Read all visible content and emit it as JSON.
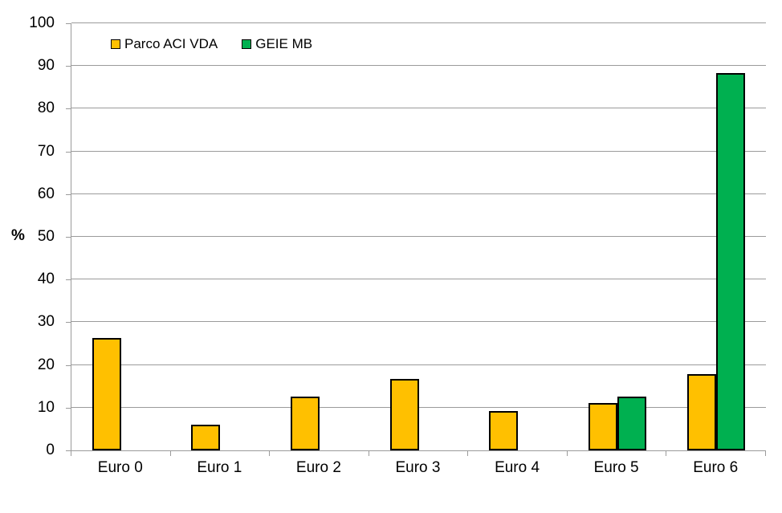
{
  "chart_data": {
    "type": "bar",
    "title": "",
    "categories": [
      "Euro 0",
      "Euro 1",
      "Euro 2",
      "Euro 3",
      "Euro 4",
      "Euro 5",
      "Euro 6"
    ],
    "series": [
      {
        "name": "Parco ACI VDA",
        "color": "#FFC000",
        "values": [
          26.4,
          6.1,
          12.6,
          16.7,
          9.3,
          11.1,
          17.9
        ]
      },
      {
        "name": "GEIE MB",
        "color": "#00B050",
        "values": [
          0,
          0,
          0,
          0,
          0,
          12.6,
          88.3
        ]
      }
    ],
    "xlabel": "",
    "ylabel": "%",
    "ylim": [
      0,
      100
    ],
    "ytick_step": 10,
    "y_tick_labels": [
      "0",
      "10",
      "20",
      "30",
      "40",
      "50",
      "60",
      "70",
      "80",
      "90",
      "100"
    ],
    "grid": true,
    "grid_color": "#9B9B9B",
    "bar_border_color": "#000000",
    "legend_position": "top-left-inside"
  }
}
